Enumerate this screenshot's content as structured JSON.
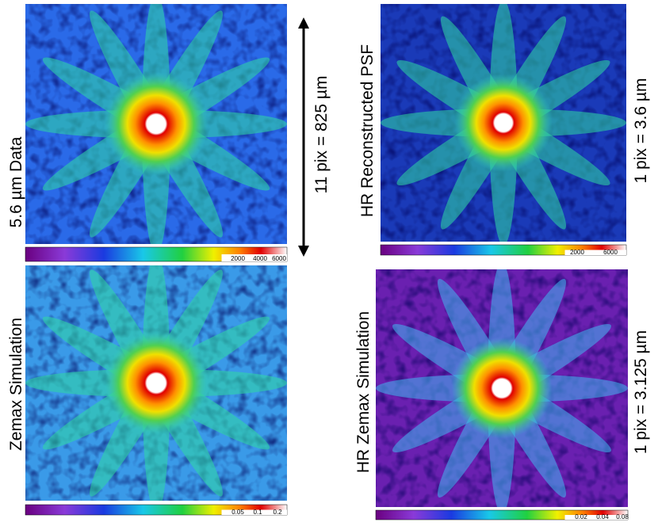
{
  "panels": [
    {
      "label": "5.6 µm  Data",
      "scale": "11 pix = 825 µm",
      "colorbar_ticks": [
        2000,
        4000,
        6000
      ]
    },
    {
      "label": "HR Reconstructed PSF",
      "scale": "1 pix = 3.6 µm",
      "colorbar_ticks": [
        2000,
        6000
      ]
    },
    {
      "label": "Zemax Simulation",
      "colorbar_ticks": [
        0.05,
        0.1,
        0.2
      ]
    },
    {
      "label": "HR Zemax Simulation",
      "scale": "1 pix = 3.125 µm",
      "colorbar_ticks": [
        0.02,
        0.04,
        0.08
      ]
    }
  ]
}
